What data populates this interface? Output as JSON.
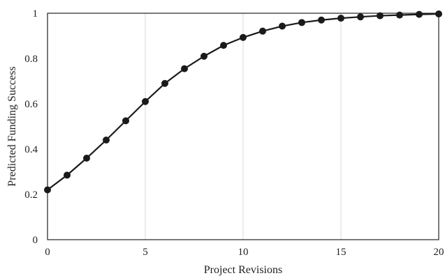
{
  "chart_data": {
    "type": "line",
    "title": "",
    "xlabel": "Project Revisions",
    "ylabel": "Predicted Funding Success",
    "xlim": [
      0,
      20
    ],
    "ylim": [
      0,
      1
    ],
    "xticks": [
      0,
      5,
      10,
      15,
      20
    ],
    "yticks": [
      0,
      0.2,
      0.4,
      0.6,
      0.8,
      1
    ],
    "ytick_labels": [
      "0",
      "0.2",
      "0.4",
      "0.6",
      "0.8",
      "1"
    ],
    "grid": "vertical",
    "legend": "none",
    "series": [
      {
        "x": [
          0,
          1,
          2,
          3,
          4,
          5,
          6,
          7,
          8,
          9,
          10,
          11,
          12,
          13,
          14,
          15,
          16,
          17,
          18,
          19,
          20
        ],
        "y": [
          0.22,
          0.285,
          0.36,
          0.44,
          0.525,
          0.61,
          0.69,
          0.755,
          0.81,
          0.858,
          0.893,
          0.921,
          0.943,
          0.959,
          0.97,
          0.978,
          0.984,
          0.989,
          0.992,
          0.995,
          0.997
        ],
        "color": "#1a1a1a",
        "marker": "circle"
      }
    ]
  }
}
